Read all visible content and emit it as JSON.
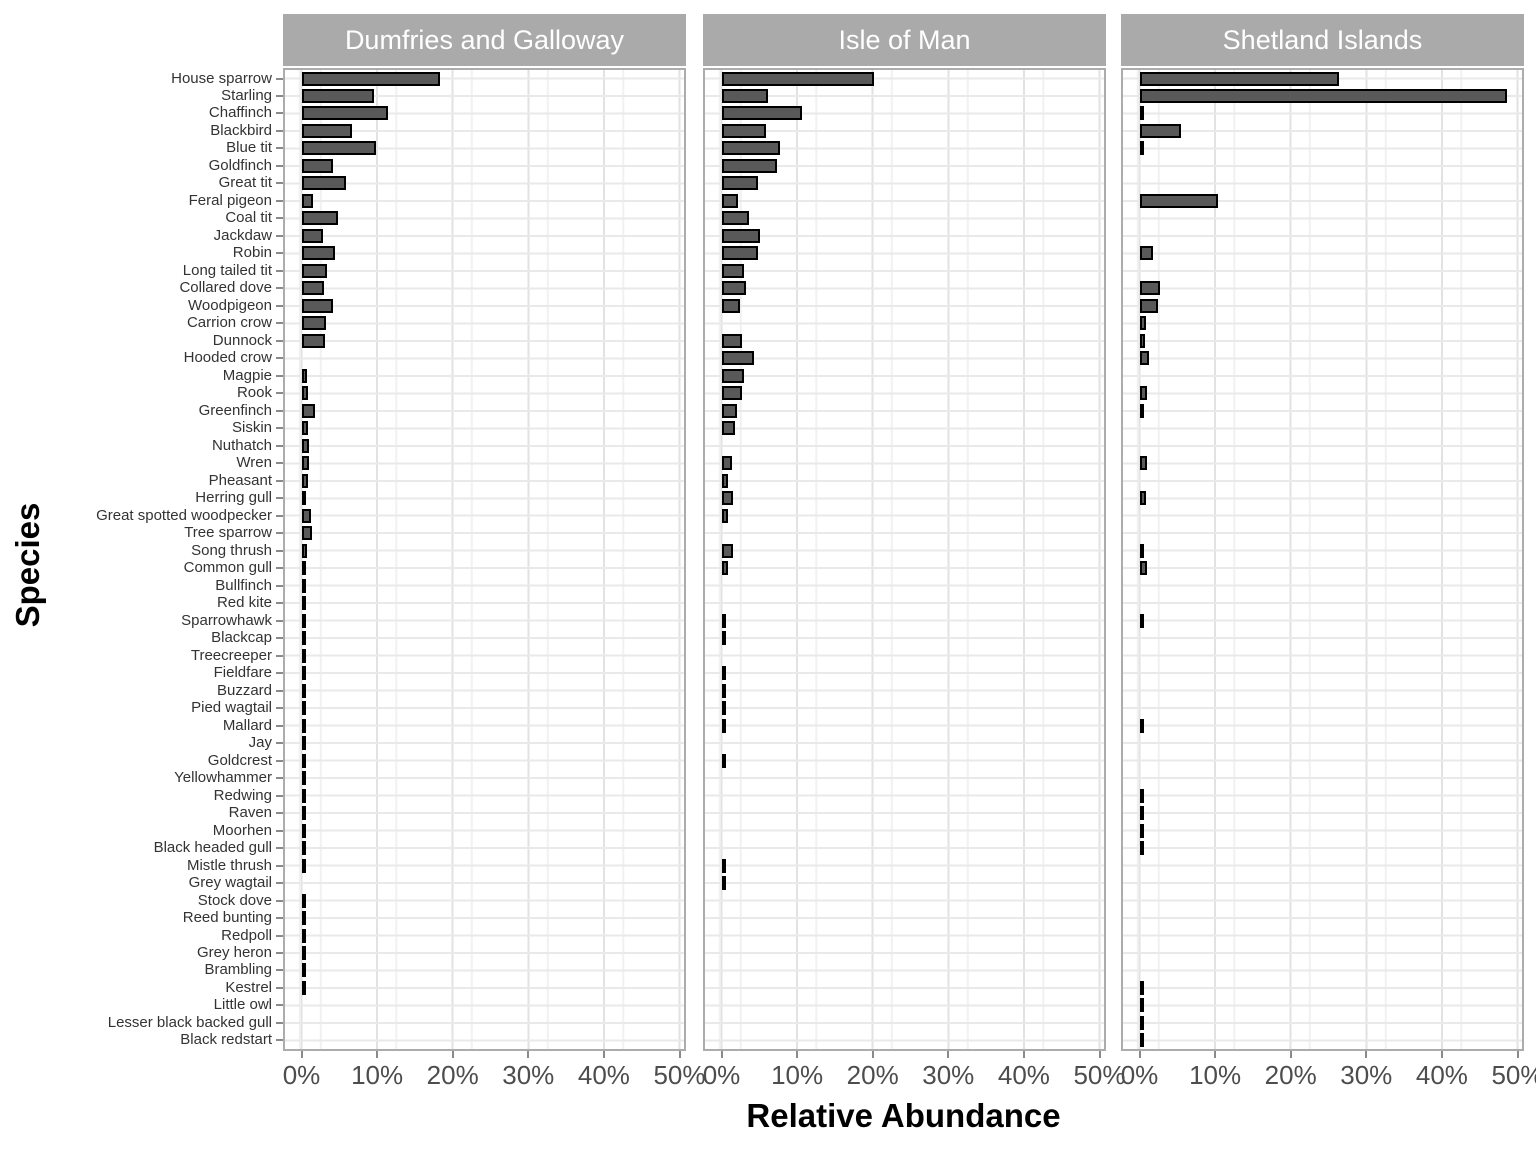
{
  "chart_data": {
    "type": "bar",
    "orientation": "horizontal",
    "title": "",
    "xlabel": "Relative Abundance",
    "ylabel": "Species",
    "facets": [
      "Dumfries and Galloway",
      "Isle of Man",
      "Shetland Islands"
    ],
    "x_tick_labels": [
      "0%",
      "10%",
      "20%",
      "30%",
      "40%",
      "50%"
    ],
    "x_tick_values": [
      0,
      10,
      20,
      30,
      40,
      50
    ],
    "xlim": [
      0,
      53
    ],
    "grid": true,
    "legend": "none",
    "bar_fill_color": "#595959",
    "bar_stroke_color": "#000000",
    "strip_bg_color": "#AAAAAA",
    "strip_text_color": "#FFFFFF",
    "categories": [
      "House sparrow",
      "Starling",
      "Chaffinch",
      "Blackbird",
      "Blue tit",
      "Goldfinch",
      "Great tit",
      "Feral pigeon",
      "Coal tit",
      "Jackdaw",
      "Robin",
      "Long tailed tit",
      "Collared dove",
      "Woodpigeon",
      "Carrion crow",
      "Dunnock",
      "Hooded crow",
      "Magpie",
      "Rook",
      "Greenfinch",
      "Siskin",
      "Nuthatch",
      "Wren",
      "Pheasant",
      "Herring gull",
      "Great spotted woodpecker",
      "Tree sparrow",
      "Song thrush",
      "Common gull",
      "Bullfinch",
      "Red kite",
      "Sparrowhawk",
      "Blackcap",
      "Treecreeper",
      "Fieldfare",
      "Buzzard",
      "Pied wagtail",
      "Mallard",
      "Jay",
      "Goldcrest",
      "Yellowhammer",
      "Redwing",
      "Raven",
      "Moorhen",
      "Black headed gull",
      "Mistle thrush",
      "Grey wagtail",
      "Stock dove",
      "Reed bunting",
      "Redpoll",
      "Grey heron",
      "Brambling",
      "Kestrel",
      "Little owl",
      "Lesser black backed gull",
      "Black redstart"
    ],
    "series": [
      {
        "name": "Dumfries and Galloway",
        "values": [
          18.0,
          9.3,
          11.1,
          6.4,
          9.5,
          3.9,
          5.5,
          1.2,
          4.5,
          2.5,
          4.1,
          3.1,
          2.7,
          3.9,
          2.9,
          2.8,
          null,
          0.4,
          0.5,
          1.5,
          0.55,
          0.65,
          0.7,
          0.55,
          0.2,
          0.9,
          1.1,
          0.45,
          0.2,
          0.15,
          0.1,
          0.15,
          0.1,
          0.1,
          0.1,
          0.1,
          0.1,
          0.1,
          0.1,
          0.1,
          0.1,
          0.1,
          0.1,
          0.1,
          0.1,
          0.1,
          null,
          0.1,
          0.1,
          0.1,
          0.1,
          0.1,
          0.1,
          null,
          null,
          null
        ]
      },
      {
        "name": "Isle of Man",
        "values": [
          19.8,
          5.8,
          10.3,
          5.6,
          7.4,
          7.0,
          4.5,
          1.8,
          3.3,
          4.7,
          4.5,
          2.7,
          2.9,
          2.1,
          null,
          2.4,
          4.0,
          2.7,
          2.4,
          1.7,
          1.4,
          null,
          1.0,
          0.55,
          1.2,
          0.55,
          null,
          1.2,
          0.55,
          null,
          null,
          0.3,
          0.3,
          null,
          0.2,
          0.2,
          0.2,
          0.2,
          null,
          0.3,
          null,
          null,
          null,
          null,
          null,
          0.3,
          0.3,
          null,
          null,
          null,
          null,
          null,
          null,
          null,
          null,
          null
        ]
      },
      {
        "name": "Shetland Islands",
        "values": [
          26.0,
          48.3,
          0.2,
          5.1,
          0.2,
          null,
          null,
          10.1,
          null,
          null,
          1.4,
          null,
          2.4,
          2.1,
          0.5,
          0.35,
          0.9,
          null,
          0.65,
          0.25,
          null,
          null,
          0.65,
          null,
          0.55,
          null,
          null,
          0.2,
          0.65,
          null,
          null,
          0.25,
          null,
          null,
          null,
          null,
          null,
          0.3,
          null,
          null,
          null,
          0.15,
          0.15,
          0.15,
          0.15,
          null,
          null,
          null,
          null,
          null,
          null,
          null,
          0.15,
          0.15,
          0.15,
          0.15
        ]
      }
    ]
  }
}
